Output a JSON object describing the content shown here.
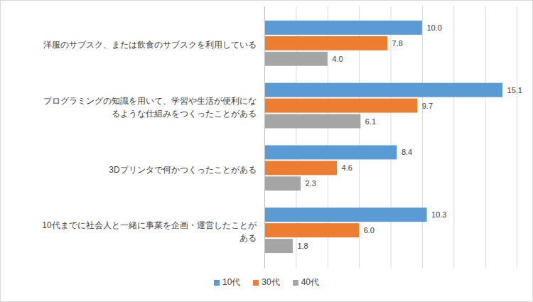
{
  "chart_data": {
    "type": "bar",
    "orientation": "horizontal",
    "categories": [
      "洋服のサブスク、または飲食のサブスクを利用している",
      "プログラミングの知識を用いて、学習や生活が便利になるような仕組みをつくったことがある",
      "3Dプリンタで何かつくったことがある",
      "10代までに社会人と一緒に事業を企画・運営したことがある"
    ],
    "series": [
      {
        "name": "10代",
        "color": "#5B9BD5",
        "values": [
          10.0,
          15.1,
          8.4,
          10.3
        ],
        "value_labels": [
          "10.0",
          "15.1",
          "8.4",
          "10.3"
        ]
      },
      {
        "name": "30代",
        "color": "#ED7D31",
        "values": [
          7.8,
          9.7,
          4.6,
          6.0
        ],
        "value_labels": [
          "7.8",
          "9.7",
          "4.6",
          "6.0"
        ]
      },
      {
        "name": "40代",
        "color": "#A5A5A5",
        "values": [
          4.0,
          6.1,
          2.3,
          1.8
        ],
        "value_labels": [
          "4.0",
          "6.1",
          "2.3",
          "1.8"
        ]
      }
    ],
    "xlim": [
      0,
      16
    ],
    "xticks": [
      0,
      2,
      4,
      6,
      8,
      10,
      12,
      14,
      16
    ],
    "grid": true,
    "tick_labels": false,
    "data_labels": true,
    "legend": "bottom"
  }
}
